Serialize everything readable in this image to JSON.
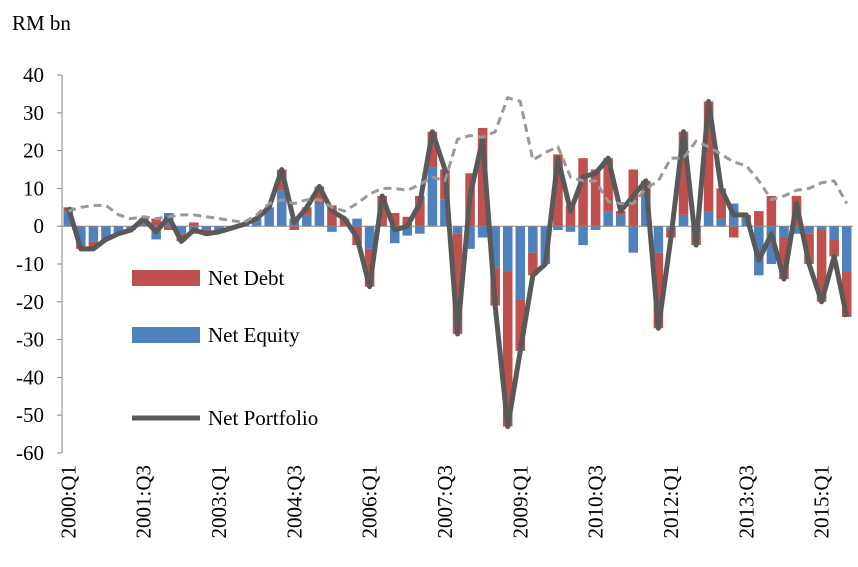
{
  "chart_data": {
    "type": "combo",
    "y_label": "RM bn",
    "categories": [
      "2000:Q1",
      null,
      null,
      null,
      null,
      null,
      "2001:Q3",
      null,
      null,
      null,
      null,
      null,
      "2003:Q1",
      null,
      null,
      null,
      null,
      null,
      "2004:Q3",
      null,
      null,
      null,
      null,
      null,
      "2006:Q1",
      null,
      null,
      null,
      null,
      null,
      "2007:Q3",
      null,
      null,
      null,
      null,
      null,
      "2009:Q1",
      null,
      null,
      null,
      null,
      null,
      "2010:Q3",
      null,
      null,
      null,
      null,
      null,
      "2012:Q1",
      null,
      null,
      null,
      null,
      null,
      "2013:Q3",
      null,
      null,
      null,
      null,
      null,
      "2015:Q1",
      null,
      null
    ],
    "series": [
      {
        "name": "Net Debt",
        "mark": "bar",
        "color": "#c0504d",
        "values": [
          1,
          -1,
          -2,
          -0.5,
          0,
          0,
          0,
          2,
          -1,
          -2,
          1,
          -1,
          -0.5,
          0,
          0,
          0,
          0,
          5.5,
          -1,
          2,
          4.5,
          5.5,
          2,
          -5,
          -10,
          8,
          3.5,
          2.5,
          8,
          9.5,
          8,
          -26.5,
          14,
          26,
          -10,
          -41,
          -13.5,
          -6,
          0,
          19,
          5.5,
          18,
          15,
          14,
          1,
          15,
          4,
          -20,
          -2,
          22,
          -3,
          29,
          8,
          -3,
          1,
          4,
          8,
          -11,
          8,
          -8,
          -19,
          -4.5,
          -12
        ]
      },
      {
        "name": "Net Equity",
        "mark": "bar",
        "color": "#4f81bd",
        "values": [
          4,
          -5,
          -4,
          -3,
          -2,
          -1,
          2,
          -3.5,
          3.5,
          -2,
          -2,
          -1,
          -1,
          -0.5,
          0.5,
          2,
          5,
          9.5,
          2,
          3,
          6,
          -1.5,
          0,
          2,
          -6,
          0,
          -4.5,
          -2.5,
          -2,
          15.5,
          7,
          -2,
          -6,
          -3,
          -11,
          -12,
          -19.5,
          -7,
          -10,
          -1,
          -1.5,
          -5,
          -1,
          4,
          3,
          -7,
          8,
          -7,
          -1,
          3,
          -2,
          4,
          2,
          6,
          2,
          -13,
          -10,
          -3,
          -2,
          -2,
          -1,
          -3.5,
          -12
        ]
      },
      {
        "name": "Net Portfolio",
        "mark": "line",
        "color": "#595959",
        "values": [
          5,
          -6,
          -6,
          -3.5,
          -2,
          -1,
          2,
          -1.5,
          2.5,
          -4,
          -1,
          -2,
          -1.5,
          -0.5,
          0.5,
          2,
          5,
          15,
          1,
          5,
          10.5,
          4,
          2,
          -3,
          -16,
          8,
          -1,
          0,
          6,
          25,
          15,
          -28.5,
          8,
          23,
          -21,
          -53,
          -33,
          -13,
          -10,
          18,
          4,
          13,
          14,
          18,
          4,
          8,
          12,
          -27,
          -3,
          25,
          -5,
          33,
          10,
          3,
          3,
          -9,
          -2,
          -14,
          6,
          -10,
          -20,
          -8,
          -24
        ]
      },
      {
        "mark": "dashed",
        "color": "#999999",
        "values": [
          4,
          5,
          5.5,
          5.5,
          3,
          2,
          2.5,
          2,
          2.5,
          3,
          3,
          2.5,
          2,
          1.5,
          1,
          3,
          6,
          7,
          6,
          7,
          7,
          5,
          4,
          6,
          8.5,
          10,
          10,
          9.5,
          11,
          13,
          12,
          23,
          24,
          23.5,
          25,
          34,
          33,
          17.5,
          19.5,
          21,
          13,
          12,
          12,
          6.5,
          6,
          6,
          10,
          12,
          18,
          18,
          22.5,
          21,
          19,
          17,
          16,
          12,
          7,
          8,
          9.5,
          10,
          11.5,
          12,
          6
        ]
      }
    ],
    "ylim": [
      -60,
      40
    ],
    "yticks": [
      -60,
      -50,
      -40,
      -30,
      -20,
      -10,
      0,
      10,
      20,
      30,
      40
    ]
  }
}
